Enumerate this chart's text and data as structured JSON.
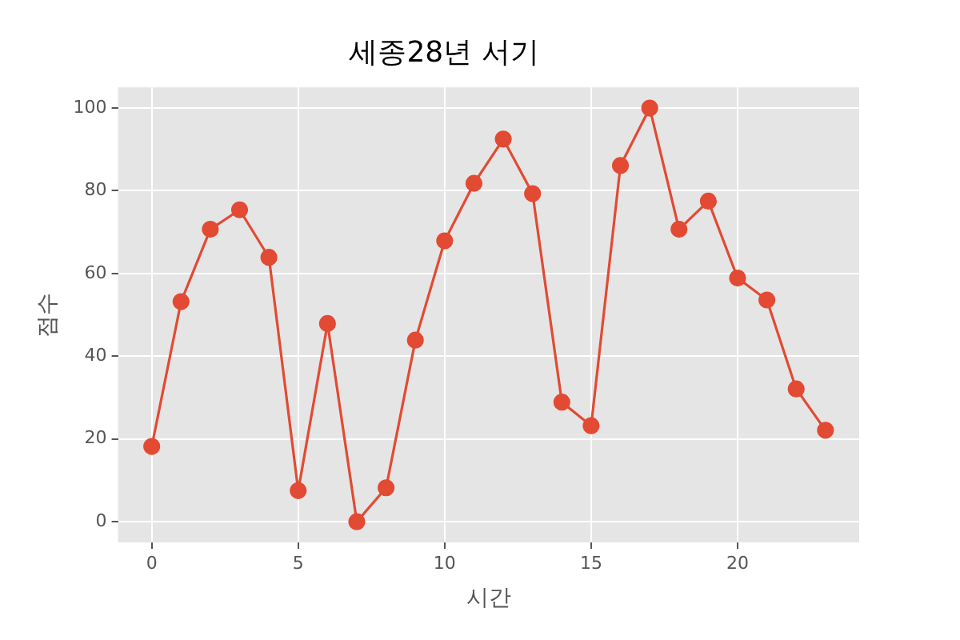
{
  "chart_data": {
    "type": "line",
    "title": "세종28년 서기",
    "xlabel": "시간",
    "ylabel": "점수",
    "x": [
      0,
      1,
      2,
      3,
      4,
      5,
      6,
      7,
      8,
      9,
      10,
      11,
      12,
      13,
      14,
      15,
      16,
      17,
      18,
      19,
      20,
      21,
      22,
      23
    ],
    "series": [
      {
        "color": "#e24a33",
        "values": [
          18.2,
          53.2,
          70.7,
          75.4,
          63.9,
          7.5,
          47.9,
          0,
          8.2,
          43.9,
          67.9,
          81.8,
          92.5,
          79.3,
          28.9,
          23.2,
          86.1,
          100,
          70.7,
          77.5,
          58.9,
          53.6,
          32.1,
          22.1
        ]
      }
    ],
    "xlim": [
      -1.15,
      24.15
    ],
    "xticks": [
      0,
      5,
      10,
      15,
      20
    ],
    "ylim": [
      -5,
      105
    ],
    "yticks": [
      0,
      20,
      40,
      60,
      80,
      100
    ],
    "grid": true,
    "legend": false,
    "marker": "circle",
    "line_style": "solid"
  }
}
